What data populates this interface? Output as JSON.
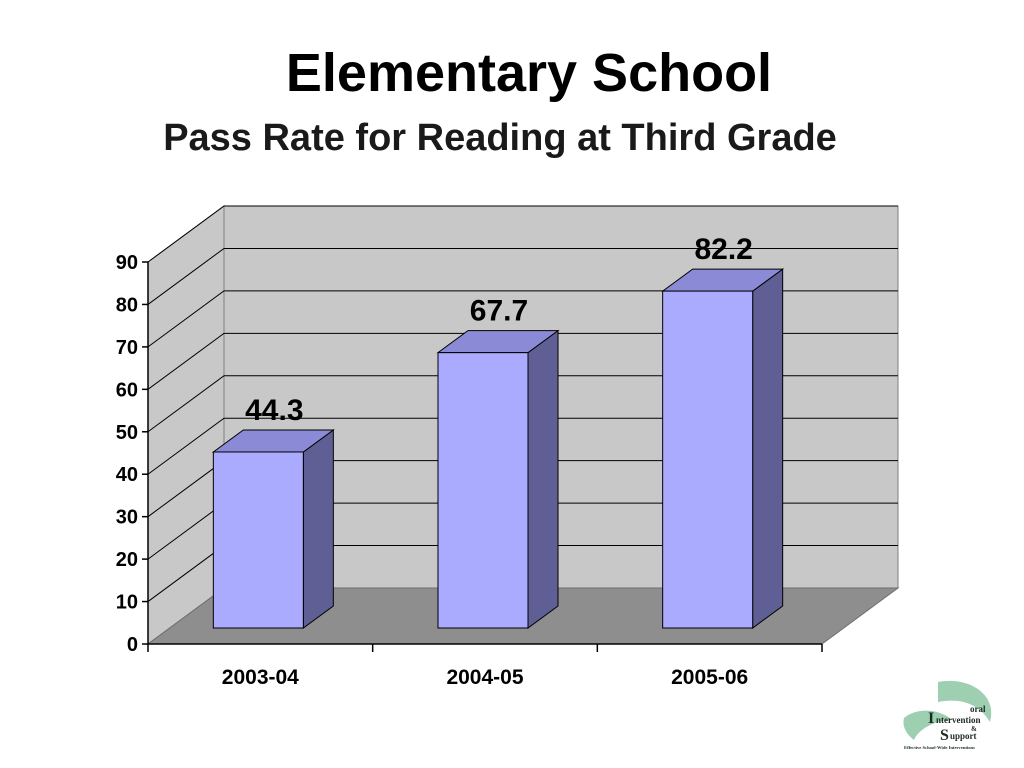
{
  "slide": {
    "title": "Elementary School"
  },
  "chart_data": {
    "type": "bar",
    "title": "Pass Rate for Reading at Third Grade",
    "categories": [
      "2003-04",
      "2004-05",
      "2005-06"
    ],
    "values": [
      44.3,
      67.7,
      82.2
    ],
    "data_labels": [
      "44.3",
      "67.7",
      "82.2"
    ],
    "ylim": [
      0,
      90
    ],
    "yticks": [
      0,
      10,
      20,
      30,
      40,
      50,
      60,
      70,
      80,
      90
    ],
    "grid": true,
    "style": "3d-column",
    "colors": {
      "bar_front": "#aaaaff",
      "bar_top": "#8a8ad6",
      "bar_side": "#5f5f96",
      "wall": "#c8c8c8",
      "floor": "#8e8e8e"
    }
  },
  "logo": {
    "line1": "oral",
    "line2": "ntervention",
    "line3": "&",
    "line4": "upport",
    "tagline": "Effective School-Wide Interventions",
    "initial_i": "I",
    "initial_s": "S"
  }
}
